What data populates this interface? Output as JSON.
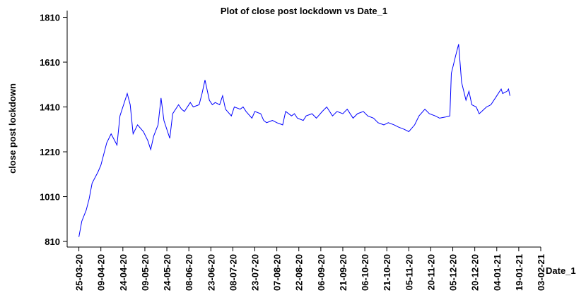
{
  "chart_data": {
    "type": "line",
    "title": "Plot of close post lockdown vs Date_1",
    "y_label": "close post lockdown",
    "x_label": "Date_1",
    "x": [
      "25-03-20",
      "27-03-20",
      "30-03-20",
      "01-04-20",
      "03-04-20",
      "07-04-20",
      "09-04-20",
      "13-04-20",
      "16-04-20",
      "20-04-20",
      "22-04-20",
      "27-04-20",
      "29-04-20",
      "01-05-20",
      "04-05-20",
      "08-05-20",
      "11-05-20",
      "13-05-20",
      "15-05-20",
      "18-05-20",
      "20-05-20",
      "22-05-20",
      "26-05-20",
      "28-05-20",
      "01-06-20",
      "03-06-20",
      "05-06-20",
      "09-06-20",
      "11-06-20",
      "15-06-20",
      "17-06-20",
      "19-06-20",
      "22-06-20",
      "24-06-20",
      "26-06-20",
      "29-06-20",
      "01-07-20",
      "03-07-20",
      "07-07-20",
      "09-07-20",
      "13-07-20",
      "15-07-20",
      "17-07-20",
      "21-07-20",
      "23-07-20",
      "27-07-20",
      "29-07-20",
      "31-07-20",
      "04-08-20",
      "07-08-20",
      "11-08-20",
      "13-08-20",
      "17-08-20",
      "19-08-20",
      "21-08-20",
      "25-08-20",
      "27-08-20",
      "31-08-20",
      "03-09-20",
      "07-09-20",
      "10-09-20",
      "14-09-20",
      "17-09-20",
      "21-09-20",
      "24-09-20",
      "28-09-20",
      "01-10-20",
      "05-10-20",
      "08-10-20",
      "12-10-20",
      "15-10-20",
      "19-10-20",
      "22-10-20",
      "26-10-20",
      "29-10-20",
      "02-11-20",
      "05-11-20",
      "09-11-20",
      "12-11-20",
      "16-11-20",
      "19-11-20",
      "23-11-20",
      "26-11-20",
      "30-11-20",
      "03-12-20",
      "04-12-20",
      "07-12-20",
      "09-12-20",
      "11-12-20",
      "14-12-20",
      "16-12-20",
      "18-12-20",
      "21-12-20",
      "23-12-20",
      "28-12-20",
      "31-12-20",
      "04-01-21",
      "07-01-21",
      "08-01-21",
      "11-01-21",
      "12-01-21",
      "13-01-21"
    ],
    "series": [
      {
        "name": "close post lockdown",
        "color": "#0000ff",
        "values": [
          830,
          900,
          950,
          1000,
          1070,
          1120,
          1150,
          1250,
          1290,
          1240,
          1370,
          1470,
          1420,
          1290,
          1330,
          1300,
          1260,
          1220,
          1280,
          1330,
          1450,
          1350,
          1270,
          1380,
          1420,
          1400,
          1390,
          1430,
          1410,
          1420,
          1470,
          1530,
          1440,
          1420,
          1430,
          1420,
          1460,
          1400,
          1370,
          1410,
          1400,
          1410,
          1390,
          1360,
          1390,
          1380,
          1350,
          1340,
          1350,
          1340,
          1330,
          1390,
          1370,
          1380,
          1360,
          1350,
          1370,
          1380,
          1360,
          1390,
          1410,
          1370,
          1390,
          1380,
          1400,
          1360,
          1380,
          1390,
          1370,
          1360,
          1340,
          1330,
          1340,
          1330,
          1320,
          1310,
          1300,
          1330,
          1370,
          1400,
          1380,
          1370,
          1360,
          1365,
          1370,
          1560,
          1640,
          1690,
          1520,
          1440,
          1480,
          1420,
          1410,
          1380,
          1410,
          1420,
          1460,
          1490,
          1470,
          1480,
          1490,
          1460
        ]
      }
    ],
    "xlim": [
      "17-03-20",
      "03-02-21"
    ],
    "xticks": [
      "25-03-20",
      "09-04-20",
      "24-04-20",
      "09-05-20",
      "24-05-20",
      "08-06-20",
      "23-06-20",
      "08-07-20",
      "23-07-20",
      "07-08-20",
      "22-08-20",
      "06-09-20",
      "21-09-20",
      "06-10-20",
      "21-10-20",
      "05-11-20",
      "20-11-20",
      "05-12-20",
      "20-12-20",
      "04-01-21",
      "19-01-21",
      "03-02-21"
    ],
    "ylim": [
      785,
      1840
    ],
    "yticks": [
      810,
      1010,
      1210,
      1410,
      1610,
      1810
    ]
  }
}
